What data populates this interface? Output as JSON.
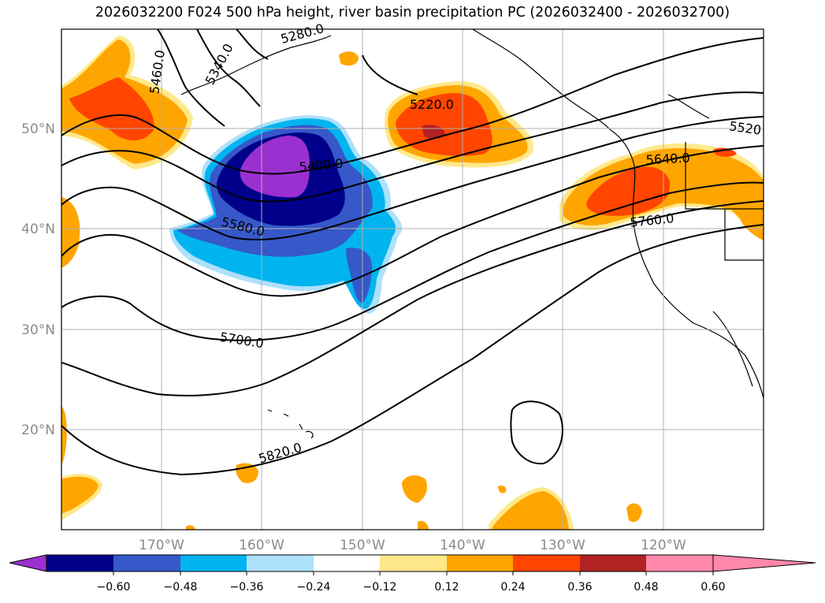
{
  "title": "2026032200 F024 500 hPa height, river basin precipitation PC (2026032400 - 2026032700)",
  "map": {
    "lat_labels": [
      "50°N",
      "40°N",
      "30°N",
      "20°N"
    ],
    "lon_labels": [
      "170°W",
      "160°W",
      "150°W",
      "140°W",
      "130°W",
      "120°W"
    ],
    "contour_labels": [
      "5460.0",
      "5340.0",
      "5280.0",
      "5220.0",
      "5520",
      "5400.0",
      "5640.0",
      "5580.0",
      "5760.0",
      "5700.0",
      "5820.0"
    ]
  },
  "colorbar": {
    "ticks": [
      "−0.60",
      "−0.48",
      "−0.36",
      "−0.24",
      "−0.12",
      "0.12",
      "0.24",
      "0.36",
      "0.48",
      "0.60"
    ],
    "colors": [
      "#9b30d0",
      "#00008b",
      "#3658c8",
      "#00b4f0",
      "#aee1fa",
      "#ffffff",
      "#ffe98a",
      "#ffa500",
      "#ff4500",
      "#b22222",
      "#ff88aa"
    ]
  }
}
